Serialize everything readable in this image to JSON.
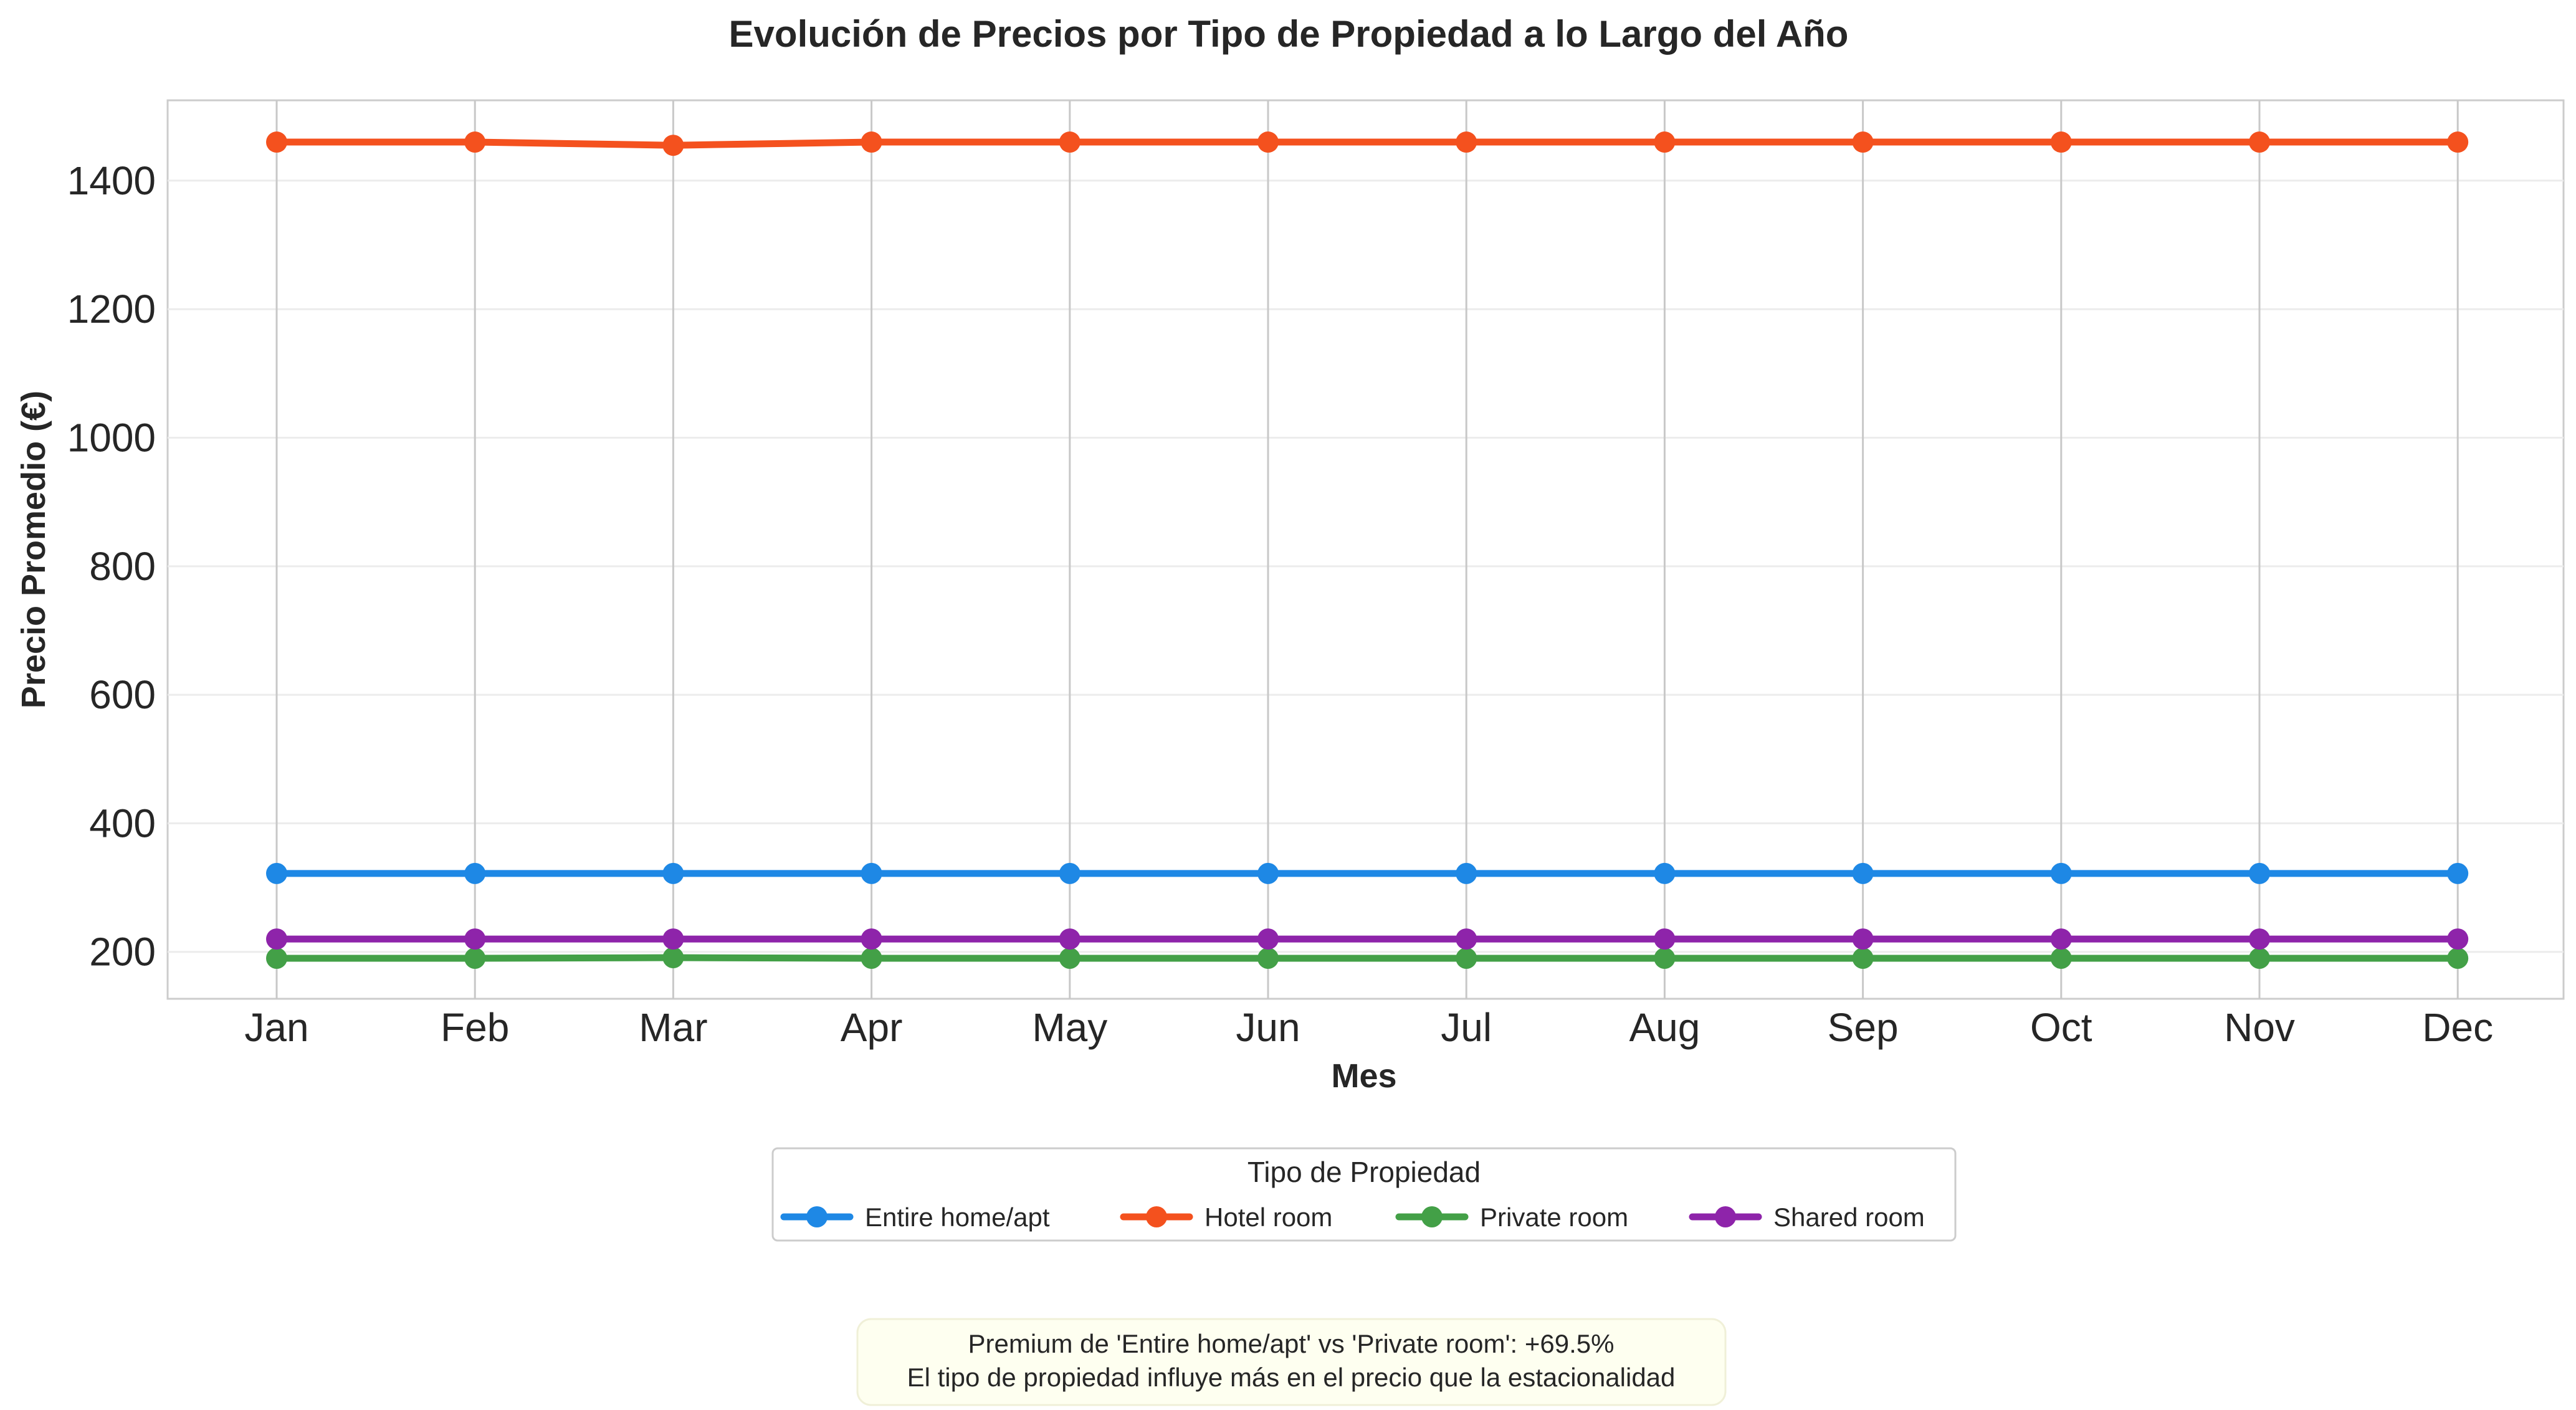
{
  "chart_data": {
    "type": "line",
    "title": "Evolución de Precios por Tipo de Propiedad a lo Largo del Año",
    "xlabel": "Mes",
    "ylabel": "Precio Promedio (€)",
    "categories": [
      "Jan",
      "Feb",
      "Mar",
      "Apr",
      "May",
      "Jun",
      "Jul",
      "Aug",
      "Sep",
      "Oct",
      "Nov",
      "Dec"
    ],
    "ylim": [
      127,
      1525
    ],
    "yticks": [
      200,
      400,
      600,
      800,
      1000,
      1200,
      1400
    ],
    "grid": true,
    "legend": {
      "title": "Tipo de Propiedad",
      "placement": "bottom-center"
    },
    "series": [
      {
        "name": "Entire home/apt",
        "color": "#1E88E5",
        "values": [
          322,
          322,
          322,
          322,
          322,
          322,
          322,
          322,
          322,
          322,
          322,
          322
        ]
      },
      {
        "name": "Hotel room",
        "color": "#F4511E",
        "values": [
          1460,
          1460,
          1455,
          1460,
          1460,
          1460,
          1460,
          1460,
          1460,
          1460,
          1460,
          1460
        ]
      },
      {
        "name": "Private room",
        "color": "#43A047",
        "values": [
          190,
          190,
          191,
          190,
          190,
          190,
          190,
          190,
          190,
          190,
          190,
          190
        ]
      },
      {
        "name": "Shared room",
        "color": "#8E24AA",
        "values": [
          220,
          220,
          220,
          220,
          220,
          220,
          220,
          220,
          220,
          220,
          220,
          220
        ]
      }
    ],
    "annotation": {
      "line1": "Premium de 'Entire home/apt' vs 'Private room': +69.5%",
      "line2": "El tipo de propiedad influye más en el precio que la estacionalidad"
    }
  }
}
